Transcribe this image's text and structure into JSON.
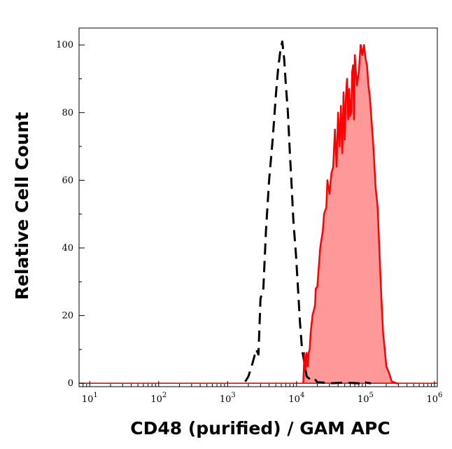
{
  "chart_data": {
    "type": "area",
    "title": "",
    "xlabel": "CD48 (purified) / GAM APC",
    "ylabel": "Relative Cell Count",
    "xscale": "log",
    "xlim": [
      7,
      1100000
    ],
    "ylim": [
      -1,
      105
    ],
    "grid": false,
    "legend": "none",
    "x_ticks": [
      {
        "base": "10",
        "exp": "1",
        "value": 10
      },
      {
        "base": "10",
        "exp": "2",
        "value": 100
      },
      {
        "base": "10",
        "exp": "3",
        "value": 1000
      },
      {
        "base": "10",
        "exp": "4",
        "value": 10000
      },
      {
        "base": "10",
        "exp": "5",
        "value": 100000
      },
      {
        "base": "10",
        "exp": "6",
        "value": 1000000
      }
    ],
    "y_ticks": [
      {
        "label": "0",
        "value": 0
      },
      {
        "label": "20",
        "value": 20
      },
      {
        "label": "40",
        "value": 40
      },
      {
        "label": "60",
        "value": 60
      },
      {
        "label": "80",
        "value": 80
      },
      {
        "label": "100",
        "value": 100
      }
    ],
    "series": [
      {
        "style": "dashed",
        "color": "#000000",
        "fill": "none",
        "x": [
          1800,
          2000,
          2300,
          2600,
          2800,
          3000,
          3300,
          3600,
          4000,
          4500,
          5000,
          5400,
          5800,
          6200,
          6600,
          7000,
          7500,
          8000,
          8500,
          9000,
          9800,
          10500,
          11200,
          12000,
          13000,
          14000,
          16000,
          18000,
          20000,
          25000,
          30000,
          50000,
          80000,
          100000,
          120000
        ],
        "y": [
          0.5,
          2,
          6,
          10,
          8.5,
          25,
          28,
          45,
          60,
          72,
          85,
          93,
          98,
          101,
          96,
          88,
          80,
          68,
          58,
          48,
          38,
          28,
          18,
          10,
          6,
          2,
          1,
          1.5,
          0.3,
          0.2,
          0,
          0.2,
          0,
          0.2,
          0
        ]
      },
      {
        "style": "solid",
        "color": "#ff0000",
        "fill": "#ff9999",
        "x": [
          12500,
          13000,
          13500,
          14000,
          14500,
          15000,
          15500,
          16000,
          17000,
          18000,
          18500,
          19000,
          20000,
          22000,
          24000,
          25000,
          26000,
          27000,
          28000,
          30000,
          32000,
          34000,
          36000,
          38000,
          40000,
          42000,
          44000,
          46000,
          48000,
          50000,
          52000,
          54000,
          56000,
          58000,
          60000,
          62000,
          64000,
          66000,
          68000,
          70000,
          75000,
          80000,
          85000,
          90000,
          95000,
          100000,
          105000,
          110000,
          115000,
          120000,
          125000,
          130000,
          140000,
          150000,
          160000,
          170000,
          180000,
          190000,
          200000,
          220000,
          240000,
          260000,
          280000,
          300000
        ],
        "y": [
          0,
          9,
          4,
          9,
          5,
          9,
          10,
          15,
          20,
          22,
          23,
          28,
          28.5,
          40,
          45,
          50,
          51,
          52,
          60,
          56,
          62,
          64,
          75,
          64,
          80,
          70,
          82,
          68,
          86,
          72,
          85,
          90,
          78,
          87,
          79,
          80,
          92,
          94,
          78,
          97,
          88,
          92,
          100,
          97,
          100,
          96,
          94,
          88,
          85,
          80,
          75,
          70,
          58,
          52,
          38,
          25,
          15,
          10,
          5,
          3,
          0.5,
          0.3,
          0,
          0
        ]
      }
    ]
  }
}
